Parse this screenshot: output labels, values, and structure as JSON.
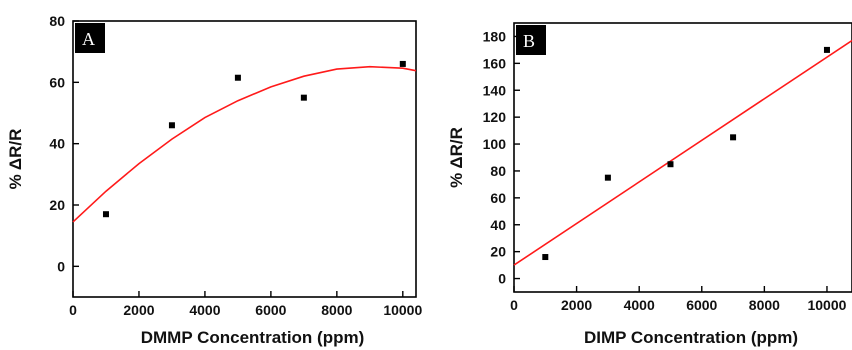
{
  "chart_data": [
    {
      "type": "scatter",
      "panel_label": "A",
      "xlabel": "DMMP Concentration (ppm)",
      "ylabel": "% ΔR/R",
      "xlim": [
        0,
        10400
      ],
      "ylim": [
        -10,
        80
      ],
      "xticks": [
        0,
        2000,
        4000,
        6000,
        8000,
        10000
      ],
      "yticks": [
        0,
        20,
        40,
        60,
        80
      ],
      "grid": false,
      "legend": "none",
      "series": [
        {
          "kind": "points",
          "color": "#000000",
          "x": [
            1000,
            3000,
            5000,
            7000,
            10000
          ],
          "y": [
            17,
            46,
            61.5,
            55,
            66
          ]
        },
        {
          "kind": "fit-quadratic",
          "color": "#ff1a1a",
          "x": [
            0,
            1000,
            2000,
            3000,
            4000,
            5000,
            6000,
            7000,
            8000,
            9000,
            10000,
            10400
          ],
          "y": [
            14.5,
            24.5,
            33.5,
            41.5,
            48.5,
            54,
            58.5,
            62,
            64.3,
            65.1,
            64.6,
            63.8
          ]
        }
      ]
    },
    {
      "type": "scatter",
      "panel_label": "B",
      "xlabel": "DIMP Concentration (ppm)",
      "ylabel": "% ΔR/R",
      "xlim": [
        0,
        10800
      ],
      "ylim": [
        -10,
        190
      ],
      "xticks": [
        0,
        2000,
        4000,
        6000,
        8000,
        10000
      ],
      "yticks": [
        0,
        20,
        40,
        60,
        80,
        100,
        120,
        140,
        160,
        180
      ],
      "grid": false,
      "legend": "none",
      "series": [
        {
          "kind": "points",
          "color": "#000000",
          "x": [
            1000,
            3000,
            5000,
            7000,
            10000
          ],
          "y": [
            16,
            75,
            85,
            105,
            170
          ]
        },
        {
          "kind": "fit-linear",
          "color": "#ff1a1a",
          "x": [
            0,
            10800
          ],
          "y": [
            10,
            177
          ]
        }
      ]
    }
  ]
}
